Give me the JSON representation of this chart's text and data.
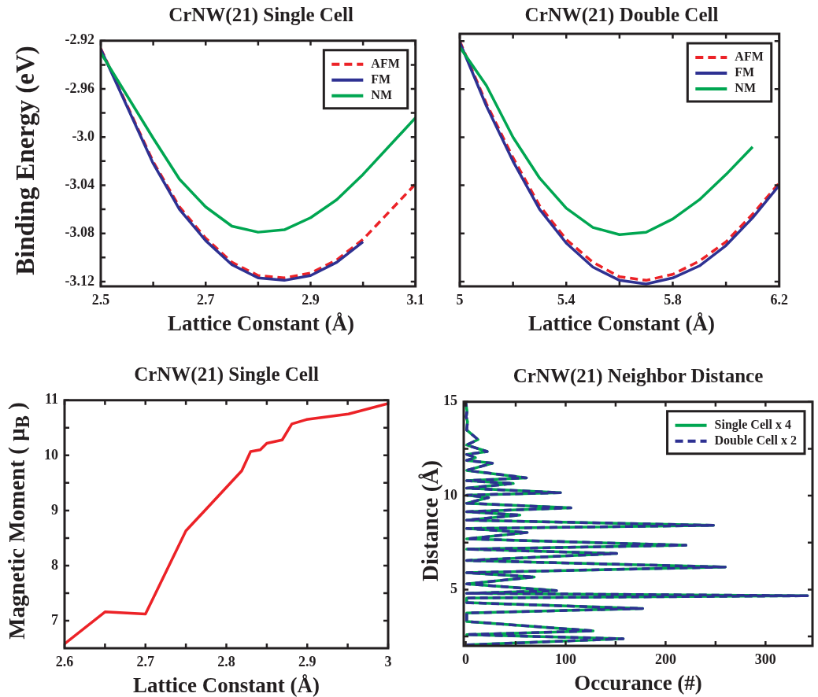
{
  "chart_data": [
    {
      "type": "line",
      "title": "CrNW(21) Single Cell",
      "xlabel": "Lattice Constant (Å)",
      "ylabel": "Binding Energy (eV)",
      "x": [
        2.5,
        2.6,
        2.65,
        2.7,
        2.75,
        2.8,
        2.85,
        2.9,
        2.95,
        3.0,
        3.1
      ],
      "series": [
        {
          "name": "AFM",
          "color": "#ec2227",
          "line_style": "dashed",
          "values": [
            -2.9265,
            -3.0205,
            -3.058,
            -3.084,
            -3.104,
            -3.115,
            -3.117,
            -3.113,
            -3.102,
            -3.085,
            -3.039
          ]
        },
        {
          "name": "FM",
          "color": "#2e3192",
          "values": [
            -2.927,
            -3.022,
            -3.06,
            -3.086,
            -3.106,
            -3.117,
            -3.119,
            -3.115,
            -3.104,
            -3.087,
            null
          ]
        },
        {
          "name": "NM",
          "color": "#00a651",
          "values": [
            -2.93,
            -3.001,
            -3.035,
            -3.058,
            -3.074,
            -3.079,
            -3.077,
            -3.067,
            -3.052,
            -3.031,
            -2.984
          ]
        }
      ],
      "xlim": [
        2.5,
        3.1
      ],
      "xticks": [
        2.5,
        {
          "value": 2.6,
          "label": null
        },
        2.7,
        {
          "value": 2.8,
          "label": null
        },
        2.9,
        {
          "value": 3.0,
          "label": null
        },
        3.1
      ],
      "ylim": [
        -3.124,
        -2.92
      ],
      "yticks": [
        -2.92,
        {
          "value": -2.94,
          "label": null
        },
        -2.96,
        {
          "value": -2.98,
          "label": null
        },
        {
          "value": -3.0,
          "label": "-3.0"
        },
        {
          "value": -3.02,
          "label": null
        },
        -3.04,
        {
          "value": -3.06,
          "label": null
        },
        -3.08,
        {
          "value": -3.1,
          "label": null
        },
        -3.12
      ],
      "legend": "top right"
    },
    {
      "type": "line",
      "title": "CrNW(21) Double Cell",
      "xlabel": "Lattice Constant (Å)",
      "x": [
        5.0,
        5.1,
        5.2,
        5.3,
        5.4,
        5.5,
        5.6,
        5.7,
        5.8,
        5.9,
        6.0,
        6.1,
        6.2
      ],
      "series": [
        {
          "name": "AFM",
          "color": "#ec2227",
          "line_style": "dashed",
          "values": [
            -2.92,
            -2.972,
            -3.017,
            -3.057,
            -3.085,
            -3.104,
            -3.116,
            -3.119,
            -3.114,
            -3.103,
            -3.087,
            -3.064,
            -3.038
          ]
        },
        {
          "name": "FM",
          "color": "#2e3192",
          "values": [
            -2.921,
            -2.974,
            -3.02,
            -3.06,
            -3.088,
            -3.108,
            -3.119,
            -3.122,
            -3.117,
            -3.107,
            -3.09,
            -3.067,
            -3.04
          ]
        },
        {
          "name": "NM",
          "color": "#00a651",
          "values": [
            -2.925,
            -2.957,
            -3.0,
            -3.034,
            -3.059,
            -3.075,
            -3.081,
            -3.079,
            -3.068,
            -3.052,
            -3.031,
            -3.008,
            null
          ]
        }
      ],
      "xlim": [
        5.0,
        6.2
      ],
      "xticks": [
        {
          "value": 5.0,
          "label": "5"
        },
        {
          "value": 5.2,
          "label": null
        },
        5.4,
        {
          "value": 5.6,
          "label": null
        },
        5.8,
        {
          "value": 6.0,
          "label": null
        },
        6.2
      ],
      "ylim": [
        -3.124,
        -2.914
      ],
      "yticks": [
        -2.92,
        -2.96,
        -3,
        -3.04,
        -3.08,
        -3.12
      ],
      "tick_labels": "x",
      "legend": "top right"
    },
    {
      "type": "line",
      "title": "CrNW(21) Single Cell",
      "xlabel": "Lattice Constant (Å)",
      "ylabel": "Magnetic Moment ( μ$_{B}$ )",
      "x": [
        2.6,
        2.65,
        2.7,
        2.75,
        2.819,
        2.83,
        2.842,
        2.85,
        2.869,
        2.881,
        2.899,
        2.951,
        3.0
      ],
      "series": [
        {
          "color": "#ec2227",
          "values": [
            6.58,
            7.16,
            7.12,
            8.63,
            9.72,
            10.07,
            10.1,
            10.22,
            10.28,
            10.57,
            10.65,
            10.75,
            10.94
          ]
        }
      ],
      "xlim": [
        2.6,
        3.0
      ],
      "xticks": [
        2.6,
        {
          "value": 2.65,
          "label": null
        },
        2.7,
        {
          "value": 2.75,
          "label": null
        },
        2.8,
        {
          "value": 2.85,
          "label": null
        },
        2.9,
        {
          "value": 2.95,
          "label": null
        },
        3
      ],
      "ylim": [
        6.5,
        11
      ],
      "yticks": [
        7,
        {
          "value": 7.5,
          "label": null
        },
        8,
        {
          "value": 8.5,
          "label": null
        },
        9,
        {
          "value": 9.5,
          "label": null
        },
        10,
        {
          "value": 10.5,
          "label": null
        },
        11
      ]
    },
    {
      "type": "line",
      "title": "CrNW(21) Neighbor Distance",
      "xlabel": "Occurance (#)",
      "ylabel": "Distance (Å)",
      "series": [
        {
          "name": "Single Cell x 4",
          "color": "#00a651",
          "x": [
            1,
            157.6,
            1,
            127.5,
            1,
            1,
            177,
            1,
            1,
            342,
            1,
            90.8,
            1,
            68.6,
            1,
            259.7,
            1,
            151,
            1,
            220.4,
            1,
            61.5,
            1,
            247.9,
            1,
            54.2,
            1,
            105.2,
            1,
            22.8,
            1,
            94.8,
            1,
            47.6,
            1,
            60.7,
            1,
            26.7,
            1,
            9.7,
            1,
            21.5,
            1,
            12.3,
            1,
            1.8,
            0.5,
            1.3,
            0
          ],
          "values": [
            2.05,
            2.38,
            2.6,
            2.8,
            3.3,
            3.75,
            3.99,
            4.3,
            4.55,
            4.67,
            4.8,
            4.94,
            5.3,
            5.67,
            5.9,
            6.2,
            6.55,
            6.92,
            7.15,
            7.36,
            7.7,
            8.04,
            8.25,
            8.42,
            8.7,
            8.97,
            9.15,
            9.35,
            9.6,
            9.9,
            10.03,
            10.16,
            10.4,
            10.65,
            10.8,
            10.95,
            11.35,
            11.73,
            11.88,
            12.03,
            12.2,
            12.35,
            12.7,
            12.99,
            13.5,
            13.95,
            14.2,
            14.5,
            15
          ]
        },
        {
          "name": "Double Cell x 2",
          "color": "#2e3192",
          "line_style": "dashed",
          "x": [
            1,
            157.6,
            1,
            127.5,
            1,
            1,
            177,
            1,
            1,
            342,
            1,
            90.8,
            1,
            68.6,
            1,
            259.7,
            1,
            151,
            1,
            220.4,
            1,
            61.5,
            1,
            247.9,
            1,
            54.2,
            1,
            105.2,
            1,
            22.8,
            1,
            94.8,
            1,
            47.6,
            1,
            60.7,
            1,
            26.7,
            1,
            9.7,
            1,
            21.5,
            1,
            12.3,
            1,
            1.8,
            0.5,
            1.3,
            0
          ],
          "values": [
            2.05,
            2.38,
            2.6,
            2.8,
            3.3,
            3.75,
            3.99,
            4.3,
            4.55,
            4.67,
            4.8,
            4.94,
            5.3,
            5.67,
            5.9,
            6.2,
            6.55,
            6.92,
            7.15,
            7.36,
            7.7,
            8.04,
            8.25,
            8.42,
            8.7,
            8.97,
            9.15,
            9.35,
            9.6,
            9.9,
            10.03,
            10.16,
            10.4,
            10.65,
            10.8,
            10.95,
            11.35,
            11.73,
            11.88,
            12.03,
            12.2,
            12.35,
            12.7,
            12.99,
            13.5,
            13.95,
            14.2,
            14.5,
            15
          ]
        }
      ],
      "xlim": [
        -2,
        347
      ],
      "xticks": [
        0,
        {
          "value": 50,
          "label": null
        },
        100,
        {
          "value": 150,
          "label": null
        },
        200,
        {
          "value": 250,
          "label": null
        },
        300
      ],
      "ylim": [
        2,
        15
      ],
      "yticks": [
        {
          "value": 2.5,
          "label": null
        },
        5,
        {
          "value": 7.5,
          "label": null
        },
        10,
        {
          "value": 12.5,
          "label": null
        },
        15
      ],
      "legend": "top right"
    }
  ]
}
